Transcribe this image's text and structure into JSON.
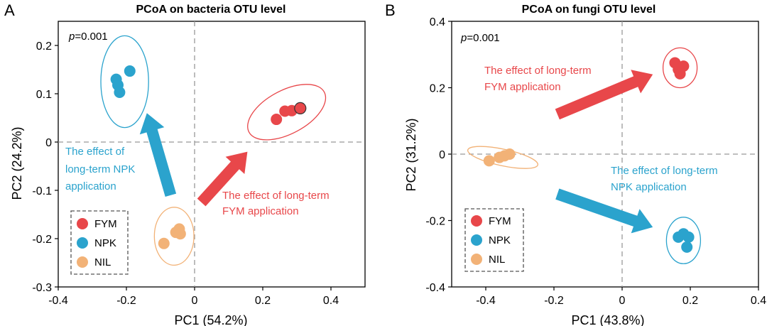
{
  "chart_data": [
    {
      "type": "scatter",
      "panel": "A",
      "title": "PCoA on bacteria OTU level",
      "xlabel": "PC1 (54.2%)",
      "ylabel": "PC2 (24.2%)",
      "xlim": [
        -0.4,
        0.5
      ],
      "ylim": [
        -0.3,
        0.25
      ],
      "xticks": [
        -0.4,
        -0.2,
        0,
        0.2,
        0.4
      ],
      "xtick_labels": [
        "-0.4",
        "-0.2",
        "0",
        "0.2",
        "0.4"
      ],
      "yticks": [
        -0.3,
        -0.2,
        -0.1,
        0,
        0.1,
        0.2
      ],
      "ytick_labels": [
        "-0.3",
        "-0.2",
        "-0.1",
        "0",
        "0.1",
        "0.2"
      ],
      "pvalue_prefix": "p",
      "pvalue_suffix": "=0.001",
      "legend": {
        "position": "bottom-left",
        "entries": [
          "FYM",
          "NPK",
          "NIL"
        ]
      },
      "series": [
        {
          "name": "FYM",
          "color": "#e8474a",
          "points": [
            [
              0.24,
              0.047
            ],
            [
              0.265,
              0.064
            ],
            [
              0.285,
              0.065
            ],
            [
              0.31,
              0.07
            ]
          ],
          "ellipse": {
            "cx": 0.27,
            "cy": 0.062,
            "rx": 0.125,
            "ry": 0.045,
            "angle_deg": 28
          }
        },
        {
          "name": "NPK",
          "color": "#2ba3cd",
          "points": [
            [
              -0.23,
              0.13
            ],
            [
              -0.225,
              0.118
            ],
            [
              -0.19,
              0.147
            ],
            [
              -0.22,
              0.103
            ]
          ],
          "ellipse": {
            "cx": -0.205,
            "cy": 0.125,
            "rx": 0.07,
            "ry": 0.095,
            "angle_deg": 0
          }
        },
        {
          "name": "NIL",
          "color": "#f2b277",
          "points": [
            [
              -0.09,
              -0.21
            ],
            [
              -0.055,
              -0.187
            ],
            [
              -0.045,
              -0.18
            ],
            [
              -0.042,
              -0.19
            ]
          ],
          "ellipse": {
            "cx": -0.06,
            "cy": -0.195,
            "rx": 0.058,
            "ry": 0.06,
            "angle_deg": 0
          }
        }
      ],
      "arrows": [
        {
          "label_lines": [
            "The effect of",
            "long-term NPK",
            "application"
          ],
          "color": "#2ba3cd",
          "from": [
            -0.07,
            -0.11
          ],
          "to": [
            -0.14,
            0.06
          ]
        },
        {
          "label_lines": [
            "The effect of long-term",
            "FYM application"
          ],
          "color": "#e8474a",
          "from": [
            0.02,
            -0.125
          ],
          "to": [
            0.155,
            -0.02
          ]
        }
      ]
    },
    {
      "type": "scatter",
      "panel": "B",
      "title": "PCoA on fungi OTU level",
      "xlabel": "PC1 (43.8%)",
      "ylabel": "PC2 (31.2%)",
      "xlim": [
        -0.5,
        0.4
      ],
      "ylim": [
        -0.4,
        0.4
      ],
      "xticks": [
        -0.4,
        -0.2,
        0,
        0.2,
        0.4
      ],
      "xtick_labels": [
        "-0.4",
        "-0.2",
        "0",
        "0.2",
        "0.4"
      ],
      "yticks": [
        -0.4,
        -0.2,
        0,
        0.2,
        0.4
      ],
      "ytick_labels": [
        "-0.4",
        "-0.2",
        "0",
        "0.2",
        "0.4"
      ],
      "pvalue_prefix": "p",
      "pvalue_suffix": "=0.001",
      "legend": {
        "position": "bottom-left",
        "entries": [
          "FYM",
          "NPK",
          "NIL"
        ]
      },
      "series": [
        {
          "name": "FYM",
          "color": "#e8474a",
          "points": [
            [
              0.155,
              0.275
            ],
            [
              0.18,
              0.265
            ],
            [
              0.165,
              0.255
            ],
            [
              0.17,
              0.242
            ]
          ],
          "ellipse": {
            "cx": 0.17,
            "cy": 0.26,
            "rx": 0.05,
            "ry": 0.06,
            "angle_deg": 0
          }
        },
        {
          "name": "NPK",
          "color": "#2ba3cd",
          "points": [
            [
              0.165,
              -0.25
            ],
            [
              0.18,
              -0.24
            ],
            [
              0.195,
              -0.25
            ],
            [
              0.19,
              -0.28
            ]
          ],
          "ellipse": {
            "cx": 0.18,
            "cy": -0.26,
            "rx": 0.05,
            "ry": 0.07,
            "angle_deg": 0
          }
        },
        {
          "name": "NIL",
          "color": "#f2b277",
          "points": [
            [
              -0.39,
              -0.02
            ],
            [
              -0.36,
              -0.01
            ],
            [
              -0.345,
              -0.005
            ],
            [
              -0.33,
              0.0
            ]
          ],
          "ellipse": {
            "cx": -0.35,
            "cy": -0.01,
            "rx": 0.105,
            "ry": 0.025,
            "angle_deg": -12
          }
        }
      ],
      "arrows": [
        {
          "label_lines": [
            "The effect of long-term",
            "FYM application"
          ],
          "color": "#e8474a",
          "from": [
            -0.19,
            0.12
          ],
          "to": [
            0.09,
            0.24
          ]
        },
        {
          "label_lines": [
            "The effect of long-term",
            "NPK application"
          ],
          "color": "#2ba3cd",
          "from": [
            -0.19,
            -0.12
          ],
          "to": [
            0.09,
            -0.22
          ]
        }
      ]
    }
  ],
  "panel_letters": [
    "A",
    "B"
  ]
}
